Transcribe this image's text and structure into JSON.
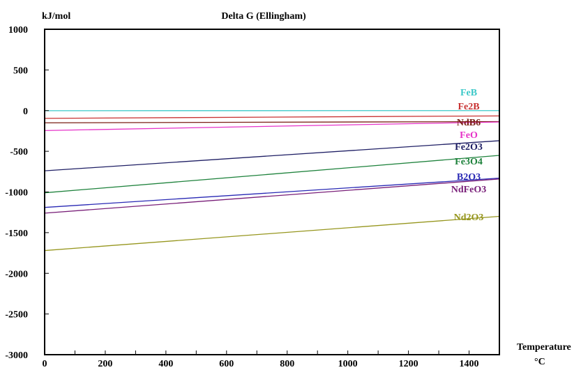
{
  "chart_data": {
    "type": "line",
    "title": "Delta G (Ellingham)",
    "ylabel": "kJ/mol",
    "xlabel": "Temperature",
    "xunit": "°C",
    "xlim": [
      0,
      1500
    ],
    "ylim": [
      -3000,
      1000
    ],
    "xticks": [
      0,
      200,
      400,
      600,
      800,
      1000,
      1200,
      1400
    ],
    "yticks": [
      1000,
      500,
      0,
      -500,
      -1000,
      -1500,
      -2000,
      -2500,
      -3000
    ],
    "grid": false,
    "series": [
      {
        "name": "FeB",
        "color": "#3cc8c8",
        "x": [
          0,
          1500
        ],
        "y": [
          -1,
          0
        ]
      },
      {
        "name": "Fe2B",
        "color": "#c83232",
        "x": [
          0,
          1500
        ],
        "y": [
          -95,
          -65
        ]
      },
      {
        "name": "NdB6",
        "color": "#7a1e14",
        "x": [
          0,
          1500
        ],
        "y": [
          -150,
          -135
        ]
      },
      {
        "name": "FeO",
        "color": "#e632c8",
        "x": [
          0,
          1500
        ],
        "y": [
          -245,
          -140
        ]
      },
      {
        "name": "Fe2O3",
        "color": "#1e1e64",
        "x": [
          0,
          1500
        ],
        "y": [
          -740,
          -370
        ]
      },
      {
        "name": "Fe3O4",
        "color": "#1e823c",
        "x": [
          0,
          1500
        ],
        "y": [
          -1010,
          -550
        ]
      },
      {
        "name": "B2O3",
        "color": "#2828b4",
        "x": [
          0,
          1500
        ],
        "y": [
          -1190,
          -830
        ]
      },
      {
        "name": "NdFeO3",
        "color": "#781e78",
        "x": [
          0,
          1500
        ],
        "y": [
          -1260,
          -840
        ]
      },
      {
        "name": "Nd2O3",
        "color": "#96961e",
        "x": [
          0,
          1500
        ],
        "y": [
          -1720,
          -1300
        ]
      }
    ]
  }
}
